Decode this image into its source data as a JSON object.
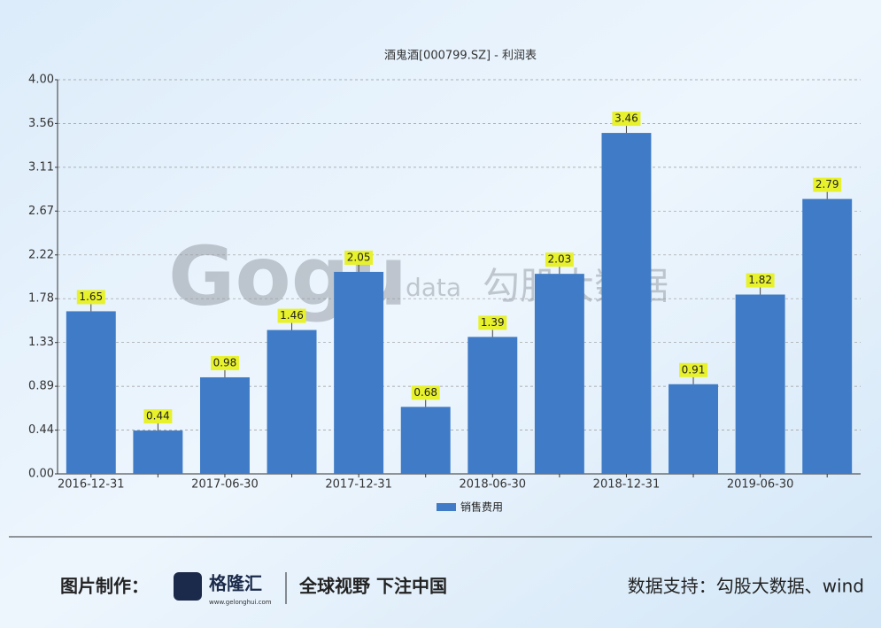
{
  "chart_data": {
    "type": "bar",
    "title": "酒鬼酒[000799.SZ] - 利润表",
    "categories": [
      "2016-12-31",
      null,
      "2017-06-30",
      null,
      "2017-12-31",
      null,
      "2018-06-30",
      null,
      "2018-12-31",
      null,
      "2019-06-30",
      null
    ],
    "series": [
      {
        "name": "销售费用",
        "color": "#3f7bc6",
        "values": [
          1.65,
          0.44,
          0.98,
          1.46,
          2.05,
          0.68,
          1.39,
          2.03,
          3.46,
          0.91,
          1.82,
          2.79
        ]
      }
    ],
    "ylim": [
      0,
      4
    ],
    "yticks": [
      {
        "value": 0,
        "label": "0.00"
      },
      {
        "value": 0.444,
        "label": "0.44"
      },
      {
        "value": 0.889,
        "label": "0.89"
      },
      {
        "value": 1.333,
        "label": "1.33"
      },
      {
        "value": 1.778,
        "label": "1.78"
      },
      {
        "value": 2.222,
        "label": "2.22"
      },
      {
        "value": 2.667,
        "label": "2.67"
      },
      {
        "value": 3.111,
        "label": "3.11"
      },
      {
        "value": 3.556,
        "label": "3.56"
      },
      {
        "value": 4,
        "label": "4.00"
      }
    ],
    "grid": true,
    "legend_position": "bottom"
  },
  "watermark": {
    "logo": "Gogu",
    "sub": "data",
    "text": "勾股大数据"
  },
  "footer": {
    "made_by": "图片制作：",
    "brand": "格隆汇",
    "url": "www.gelonghui.com",
    "slogan": "全球视野 下注中国",
    "source": "数据支持：勾股大数据、wind"
  }
}
